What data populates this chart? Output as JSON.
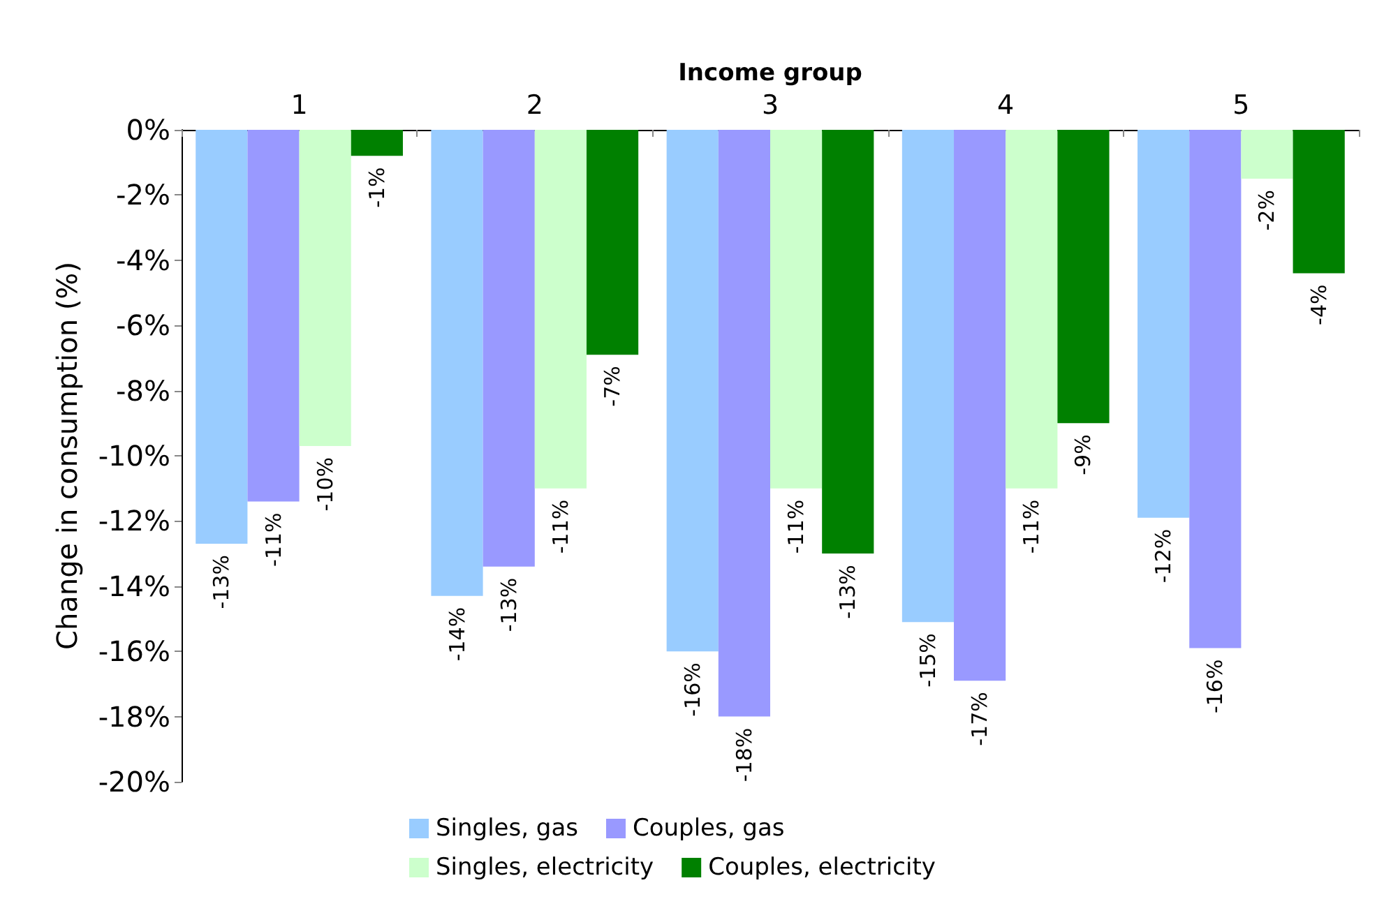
{
  "chart_data": {
    "type": "bar",
    "xlabel": "Income group",
    "ylabel": "Change in consumption (%)",
    "categories": [
      "1",
      "2",
      "3",
      "4",
      "5"
    ],
    "series": [
      {
        "name": "Singles, gas",
        "color": "#99ccff",
        "values": [
          -12.7,
          -14.3,
          -16.0,
          -15.1,
          -11.9
        ],
        "value_labels": [
          "-13%",
          "-14%",
          "-16%",
          "-15%",
          "-12%"
        ]
      },
      {
        "name": "Couples, gas",
        "color": "#9999ff",
        "values": [
          -11.4,
          -13.4,
          -18.0,
          -16.9,
          -15.9
        ],
        "value_labels": [
          "-11%",
          "-13%",
          "-18%",
          "-17%",
          "-16%"
        ]
      },
      {
        "name": "Singles, electricity",
        "color": "#ccffcc",
        "values": [
          -9.7,
          -11.0,
          -11.0,
          -11.0,
          -1.5
        ],
        "value_labels": [
          "-10%",
          "-11%",
          "-11%",
          "-11%",
          "-2%"
        ]
      },
      {
        "name": "Couples, electricity",
        "color": "#008000",
        "values": [
          -0.8,
          -6.9,
          -13.0,
          -9.0,
          -4.4
        ],
        "value_labels": [
          "-1%",
          "-7%",
          "-13%",
          "-9%",
          "-4%"
        ]
      }
    ],
    "ylim": [
      -20,
      0
    ],
    "yticks": [
      {
        "value": -20,
        "label": "-20%"
      },
      {
        "value": -18,
        "label": "-18%"
      },
      {
        "value": -16,
        "label": "-16%"
      },
      {
        "value": -14,
        "label": "-14%"
      },
      {
        "value": -12,
        "label": "-12%"
      },
      {
        "value": -10,
        "label": "-10%"
      },
      {
        "value": -8,
        "label": "-8%"
      },
      {
        "value": -6,
        "label": "-6%"
      },
      {
        "value": -4,
        "label": "-4%"
      },
      {
        "value": -2,
        "label": "-2%"
      },
      {
        "value": 0,
        "label": "0%"
      }
    ],
    "grid": false,
    "legend": "bottom"
  }
}
